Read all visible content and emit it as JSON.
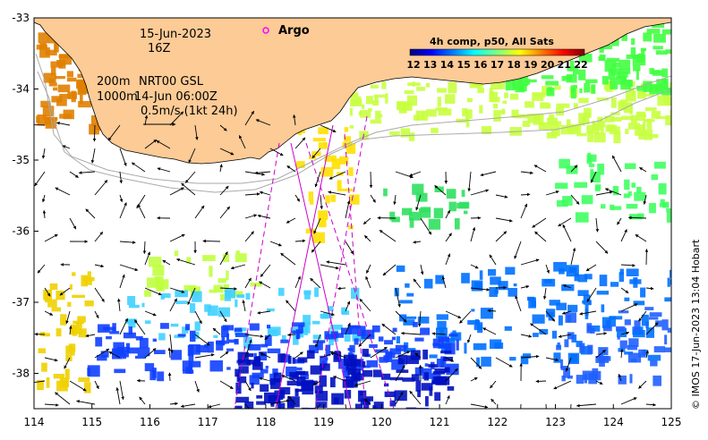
{
  "title_block": {
    "date": "15-Jun-2023",
    "hour": "16Z",
    "isobaths": [
      "200m",
      "1000m"
    ],
    "product": "NRT00 GSL",
    "product_time": "14-Jun 06:00Z",
    "scale_label": "0.5m/s (1kt 24h)"
  },
  "legend": {
    "argo_label": "Argo",
    "argo_color": "#ff00ff",
    "colorbar_title": "4h comp, p50, All Sats",
    "colorbar_ticks": [
      "12",
      "13",
      "14",
      "15",
      "16",
      "17",
      "18",
      "19",
      "20",
      "21",
      "22"
    ],
    "colorbar_colors": [
      "#00007f",
      "#0000ff",
      "#007fff",
      "#00ffff",
      "#7fff7f",
      "#ffff00",
      "#ff7f00",
      "#ff0000",
      "#7f0000"
    ]
  },
  "axes": {
    "x_ticks": [
      "114",
      "115",
      "116",
      "117",
      "118",
      "119",
      "120",
      "121",
      "122",
      "123",
      "124",
      "125"
    ],
    "y_ticks": [
      "-33",
      "-34",
      "-35",
      "-36",
      "-37",
      "-38"
    ]
  },
  "colors": {
    "land": "#fccb96",
    "track": "#cc00cc",
    "isobath": "#aaaaaa"
  },
  "credit": "© IMOS 17-Jun-2023 13:04 Hobart"
}
